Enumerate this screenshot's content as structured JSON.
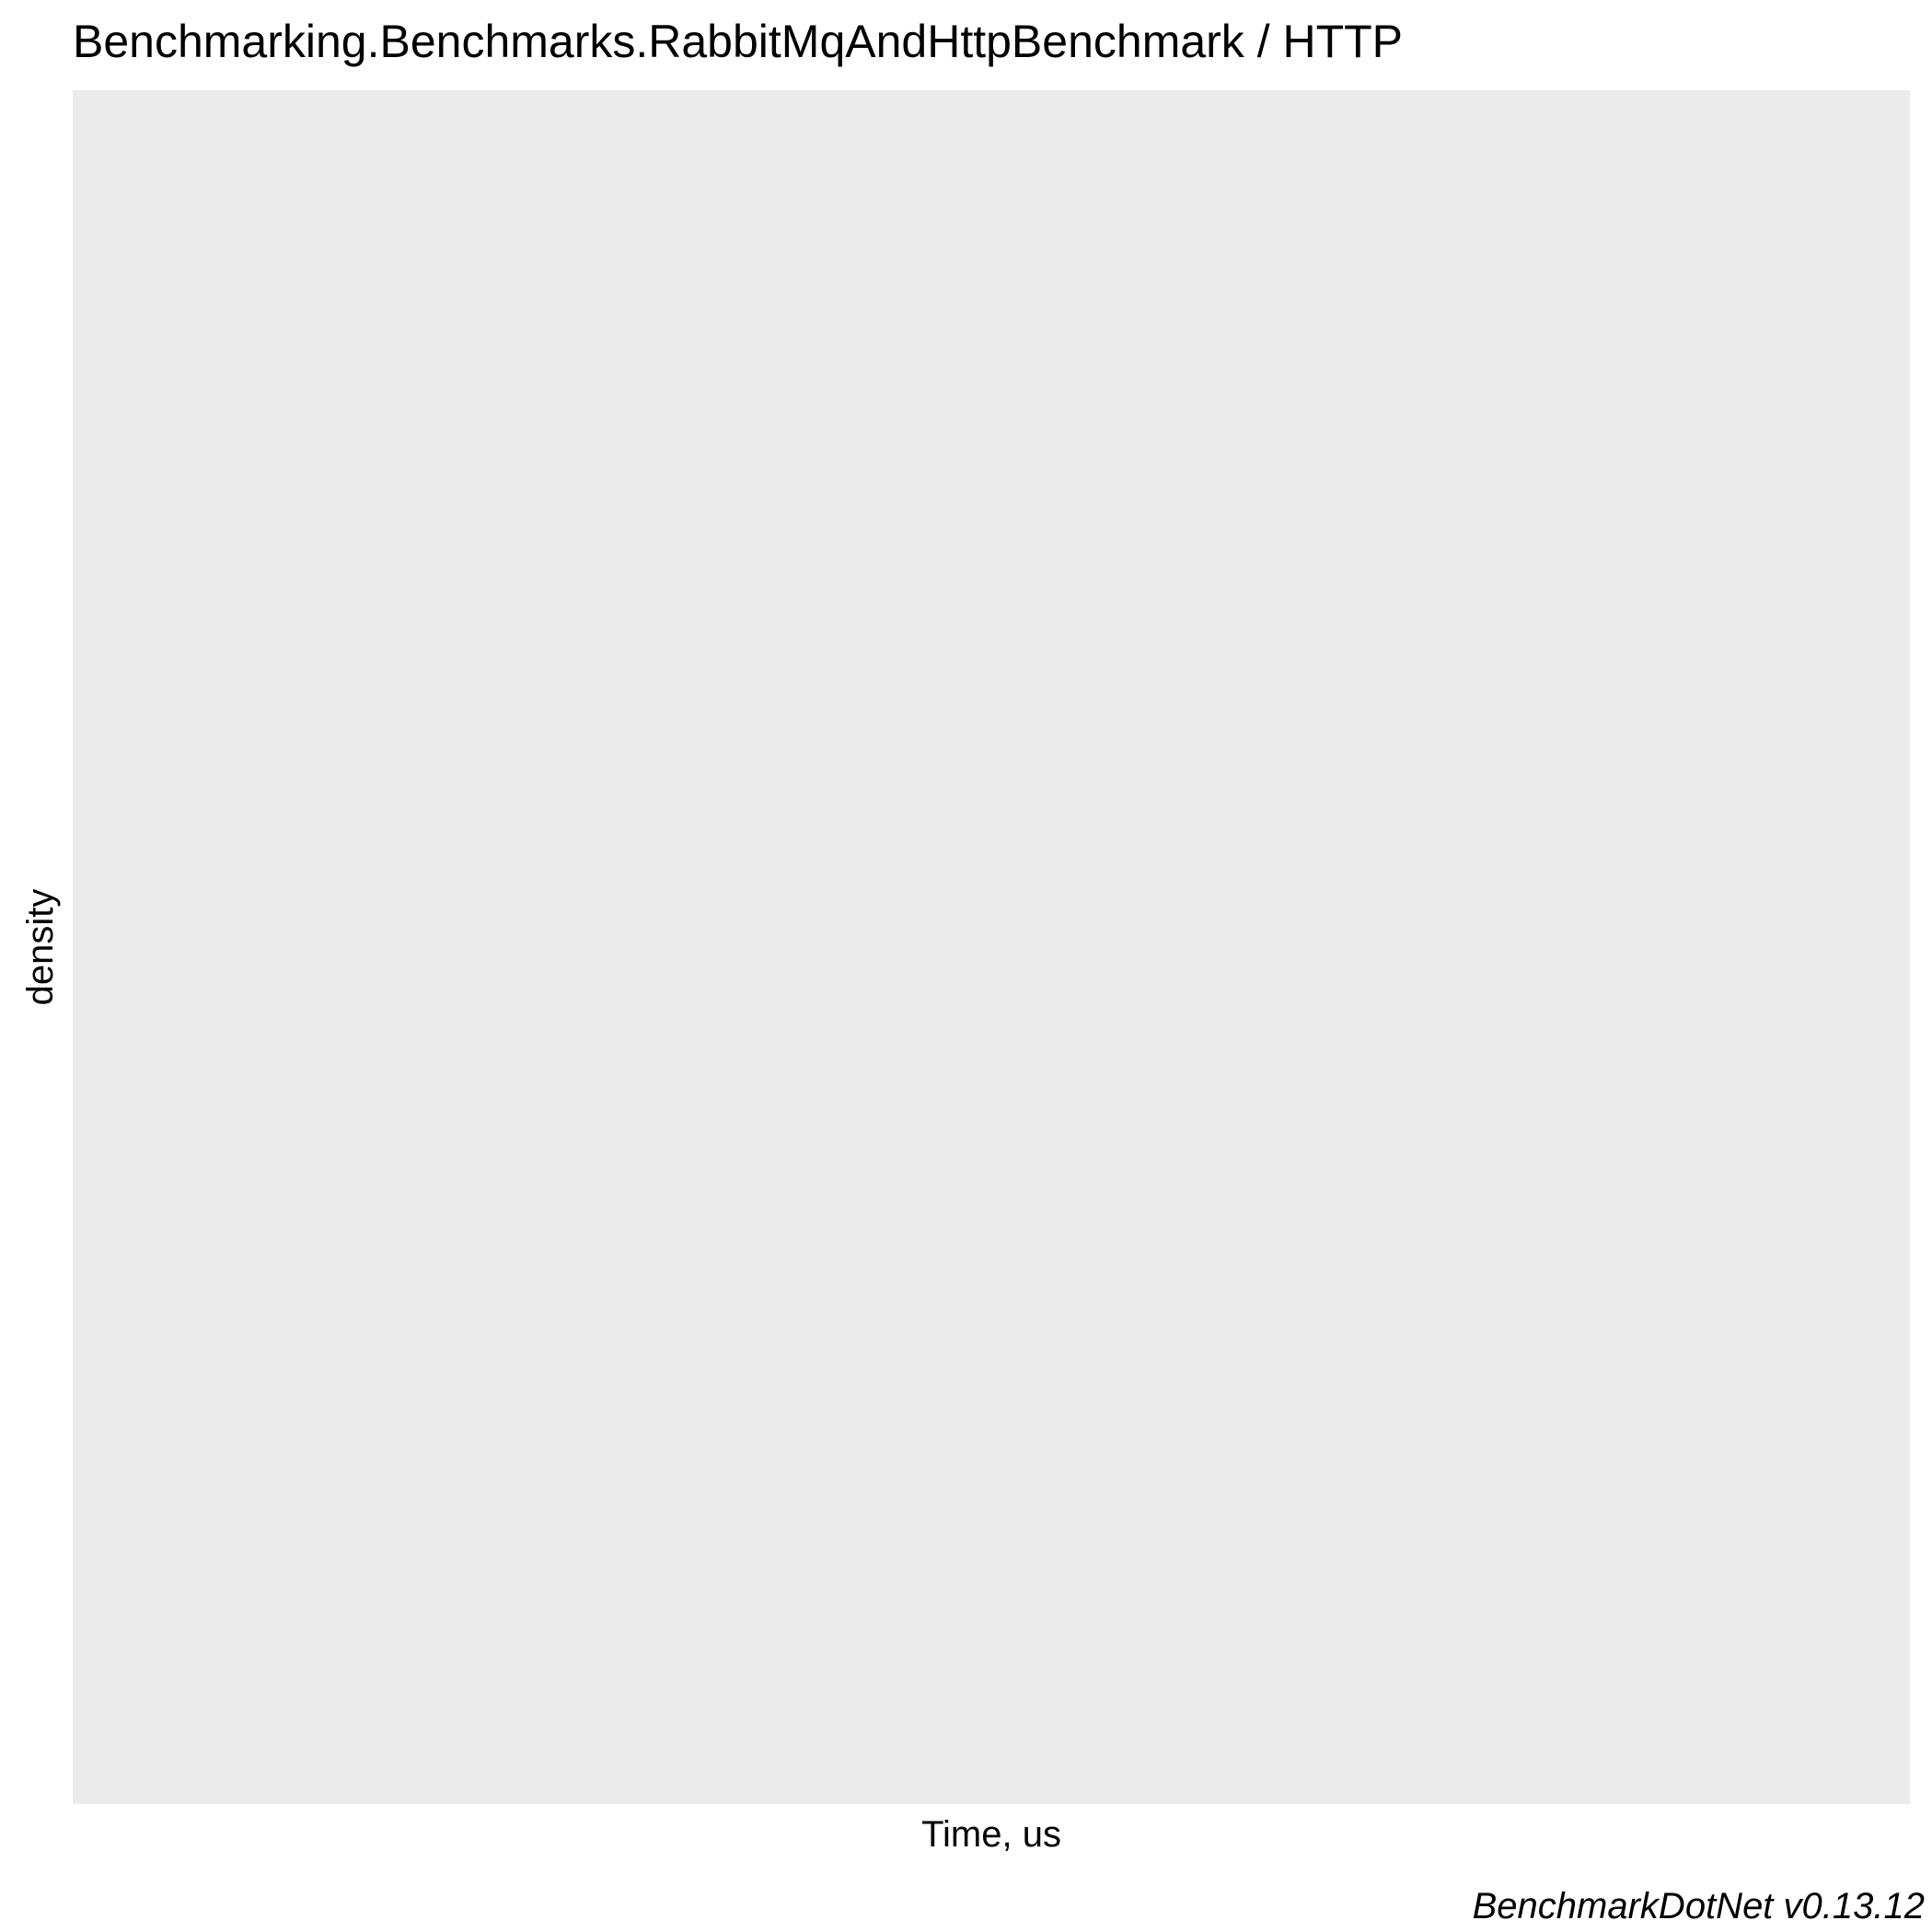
{
  "chart_data": {
    "type": "area",
    "title": "Benchmarking.Benchmarks.RabbitMqAndHttpBenchmark / HTTP",
    "xlabel": "Time, us",
    "ylabel": "density",
    "caption": "BenchmarkDotNet v0.13.12",
    "series": [],
    "grid": false,
    "legend": "none",
    "panel_color": "#ebebeb"
  }
}
